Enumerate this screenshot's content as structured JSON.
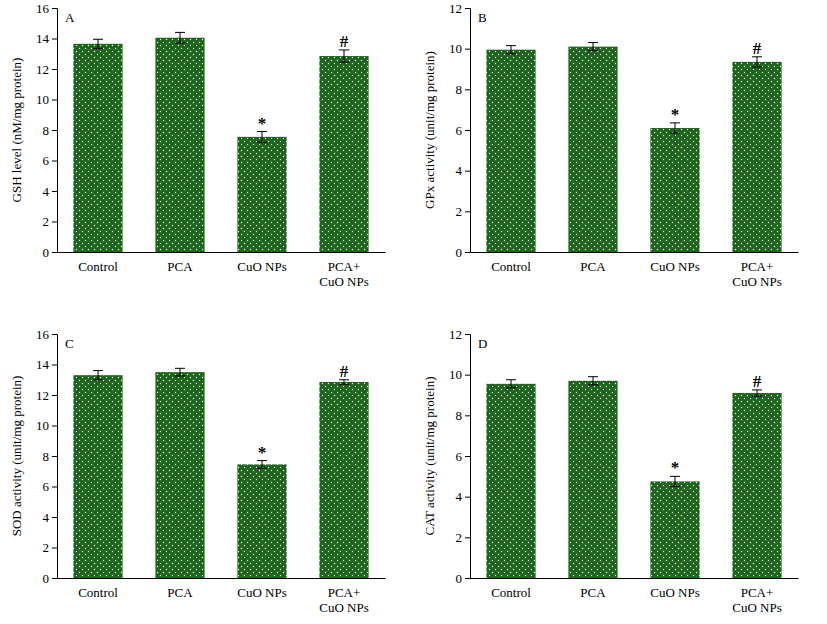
{
  "chart_data": [
    {
      "type": "bar",
      "title": "A",
      "y_label": "GSH level (nM/mg protein)",
      "categories": [
        "Control",
        "PCA",
        "CuO NPs",
        "PCA+\nCuO NPs"
      ],
      "values": [
        13.65,
        14.05,
        7.55,
        12.85
      ],
      "errors": [
        0.3,
        0.35,
        0.35,
        0.4
      ],
      "annotations": [
        null,
        null,
        "*",
        "#"
      ],
      "color": "#1b661b",
      "ylim": [
        0,
        16
      ],
      "yticks": [
        0,
        2,
        4,
        6,
        8,
        10,
        12,
        14,
        16
      ]
    },
    {
      "type": "bar",
      "title": "B",
      "y_label": "GPx activity (unit/mg protein)",
      "categories": [
        "Control",
        "PCA",
        "CuO NPs",
        "PCA+\nCuO NPs"
      ],
      "values": [
        9.95,
        10.1,
        6.1,
        9.35
      ],
      "errors": [
        0.2,
        0.2,
        0.25,
        0.25
      ],
      "annotations": [
        null,
        null,
        "*",
        "#"
      ],
      "color": "#1b661b",
      "ylim": [
        0,
        12
      ],
      "yticks": [
        0,
        2,
        4,
        6,
        8,
        10,
        12
      ]
    },
    {
      "type": "bar",
      "title": "C",
      "y_label": "SOD activity (unit/mg protein)",
      "categories": [
        "Control",
        "PCA",
        "CuO NPs",
        "PCA+\nCuO NPs"
      ],
      "values": [
        13.3,
        13.5,
        7.45,
        12.85
      ],
      "errors": [
        0.3,
        0.25,
        0.25,
        0.15
      ],
      "annotations": [
        null,
        null,
        "*",
        "#"
      ],
      "color": "#1b661b",
      "ylim": [
        0,
        16
      ],
      "yticks": [
        0,
        2,
        4,
        6,
        8,
        10,
        12,
        14,
        16
      ]
    },
    {
      "type": "bar",
      "title": "D",
      "y_label": "CAT activity (unit/mg protein)",
      "categories": [
        "Control",
        "PCA",
        "CuO NPs",
        "PCA+\nCuO NPs"
      ],
      "values": [
        9.55,
        9.7,
        4.75,
        9.1
      ],
      "errors": [
        0.2,
        0.2,
        0.25,
        0.15
      ],
      "annotations": [
        null,
        null,
        "*",
        "#"
      ],
      "color": "#1b661b",
      "ylim": [
        0,
        12
      ],
      "yticks": [
        0,
        2,
        4,
        6,
        8,
        10,
        12
      ]
    }
  ]
}
